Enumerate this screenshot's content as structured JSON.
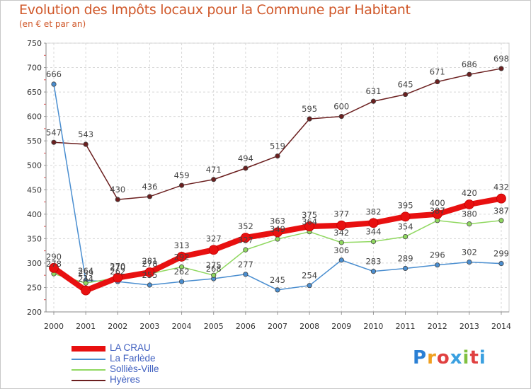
{
  "title": "Evolution des Impôts locaux pour la Commune par Habitant",
  "subtitle": "(en € et par an)",
  "logo": {
    "letters": [
      "P",
      "r",
      "o",
      "x",
      "i",
      "t",
      "i"
    ],
    "colors": [
      "#2a7fd4",
      "#f0a020",
      "#e04040",
      "#3aa0e0",
      "#80c040",
      "#e04040",
      "#3aa0e0"
    ]
  },
  "chart_data": {
    "type": "line",
    "x": [
      "2000",
      "2001",
      "2002",
      "2003",
      "2004",
      "2005",
      "2006",
      "2007",
      "2008",
      "2009",
      "2010",
      "2011",
      "2012",
      "2013",
      "2014"
    ],
    "ylim": [
      200,
      750
    ],
    "yticks": [
      "200",
      "250",
      "300",
      "350",
      "400",
      "450",
      "500",
      "550",
      "600",
      "650",
      "700",
      "750"
    ],
    "grid": true,
    "legend_position": "bottom-left",
    "series": [
      {
        "name": "Hyères",
        "color": "#6b1f1f",
        "width": 1.5,
        "values": [
          547,
          543,
          430,
          436,
          459,
          471,
          494,
          519,
          595,
          600,
          631,
          645,
          671,
          686,
          698
        ],
        "labels": [
          "547",
          "543",
          "430",
          "436",
          "459",
          "471",
          "494",
          "519",
          "595",
          "600",
          "631",
          "645",
          "671",
          "686",
          "698"
        ]
      },
      {
        "name": "La Farlède",
        "color": "#4a8ed0",
        "width": 1.5,
        "values": [
          666,
          264,
          262,
          255,
          262,
          268,
          277,
          245,
          254,
          306,
          283,
          289,
          296,
          302,
          299
        ],
        "labels": [
          "666",
          "264",
          "262",
          "255",
          "262",
          "268",
          "277",
          "245",
          "254",
          "306",
          "283",
          "289",
          "296",
          "302",
          "299"
        ]
      },
      {
        "name": "Solliès-Ville",
        "color": "#90d860",
        "width": 1.5,
        "values": [
          278,
          259,
          270,
          278,
          292,
          275,
          327,
          349,
          364,
          342,
          344,
          354,
          387,
          380,
          387
        ],
        "labels": [
          "278",
          "259",
          "270",
          "278",
          "292",
          "275",
          "327",
          "349",
          "364",
          "342",
          "344",
          "354",
          "387",
          "380",
          "387"
        ]
      },
      {
        "name": "LA CRAU",
        "color": "#e81010",
        "width": 8,
        "values": [
          290,
          244,
          270,
          281,
          313,
          327,
          352,
          363,
          375,
          377,
          382,
          395,
          400,
          420,
          432
        ],
        "labels": [
          "290",
          "244",
          "270",
          "281",
          "313",
          "327",
          "352",
          "363",
          "375",
          "377",
          "382",
          "395",
          "400",
          "420",
          "432"
        ]
      }
    ]
  }
}
